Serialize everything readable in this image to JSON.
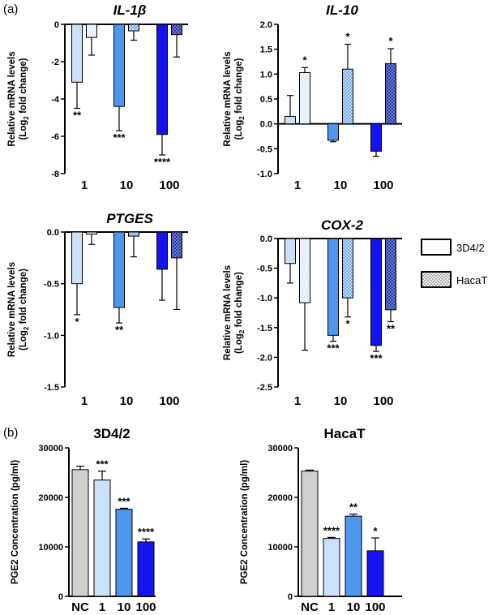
{
  "panel_labels": {
    "a": "(a)",
    "b": "(b)"
  },
  "legend": [
    {
      "name": "3D4/2",
      "pattern": "open"
    },
    {
      "name": "HacaT",
      "pattern": "hatched"
    }
  ],
  "colors": {
    "light": "#cce0f8",
    "mid": "#4d98ee",
    "dark": "#1414f0",
    "hatch_light": "#cfe2f8",
    "hatch_mid": "#6aa6ee",
    "hatch_dark": "#1a2aa0",
    "grey": "#d0d0d0"
  },
  "chart_data": [
    {
      "id": "il1b",
      "type": "bar",
      "title": "IL-1",
      "title_suffix": "β",
      "ylabel": "Relative mRNA levels",
      "ylabel2_pre": "(Log",
      "ylabel2_sub": "2",
      "ylabel2_post": " fold change)",
      "ylim": [
        -8,
        0
      ],
      "yticks": [
        0,
        -2,
        -4,
        -6,
        -8
      ],
      "ytick_labels": [
        "0",
        "-2",
        "-4",
        "-6",
        "-8"
      ],
      "categories": [
        "1",
        "10",
        "100"
      ],
      "series": [
        {
          "name": "3D4/2",
          "values": [
            -3.1,
            -4.4,
            -5.9
          ],
          "errors": [
            1.4,
            1.3,
            1.1
          ],
          "stars": [
            "**",
            "***",
            "****"
          ]
        },
        {
          "name": "HacaT",
          "values": [
            -0.7,
            -0.35,
            -0.55
          ],
          "errors": [
            0.95,
            0.5,
            1.2
          ],
          "stars": [
            "",
            "",
            ""
          ]
        }
      ]
    },
    {
      "id": "il10",
      "type": "bar",
      "title": "IL-10",
      "title_suffix": "",
      "ylabel": "Relative mRNA levels",
      "ylabel2_pre": "(Log",
      "ylabel2_sub": "2",
      "ylabel2_post": " fold change)",
      "ylim": [
        -1,
        2
      ],
      "yticks": [
        2,
        1.5,
        1,
        0.5,
        0,
        -0.5,
        -1
      ],
      "ytick_labels": [
        "2.0",
        "1.5",
        "1.0",
        "0.5",
        "0.0",
        "-0.5",
        "-1.0"
      ],
      "categories": [
        "1",
        "10",
        "100"
      ],
      "series": [
        {
          "name": "3D4/2",
          "values": [
            0.15,
            -0.33,
            -0.55
          ],
          "errors": [
            0.42,
            0.03,
            0.1
          ],
          "stars": [
            "",
            "",
            ""
          ]
        },
        {
          "name": "HacaT",
          "values": [
            1.03,
            1.1,
            1.21
          ],
          "errors": [
            0.1,
            0.5,
            0.3
          ],
          "stars": [
            "*",
            "*",
            "*"
          ]
        }
      ]
    },
    {
      "id": "ptges",
      "type": "bar",
      "title": "PTGES",
      "title_suffix": "",
      "ylabel": "Relative mRNA levels",
      "ylabel2_pre": "(Log",
      "ylabel2_sub": "2",
      "ylabel2_post": " fold change)",
      "ylim": [
        -1.5,
        0
      ],
      "yticks": [
        0,
        -0.5,
        -1,
        -1.5
      ],
      "ytick_labels": [
        "0.0",
        "-0.5",
        "-1.0",
        "-1.5"
      ],
      "categories": [
        "1",
        "10",
        "100"
      ],
      "series": [
        {
          "name": "3D4/2",
          "values": [
            -0.5,
            -0.73,
            -0.36
          ],
          "errors": [
            0.3,
            0.15,
            0.3
          ],
          "stars": [
            "*",
            "**",
            ""
          ]
        },
        {
          "name": "HacaT",
          "values": [
            -0.02,
            -0.04,
            -0.25
          ],
          "errors": [
            0.1,
            0.2,
            0.5
          ],
          "stars": [
            "",
            "",
            ""
          ]
        }
      ]
    },
    {
      "id": "cox2",
      "type": "bar",
      "title": "COX-2",
      "title_suffix": "",
      "ylabel": "Relative mRNA levels",
      "ylabel2_pre": "(Log",
      "ylabel2_sub": "2",
      "ylabel2_post": " fold change)",
      "ylim": [
        -2.5,
        0
      ],
      "yticks": [
        0,
        -0.5,
        -1,
        -1.5,
        -2,
        -2.5
      ],
      "ytick_labels": [
        "0.0",
        "-0.5",
        "-1.0",
        "-1.5",
        "-2.0",
        "-2.5"
      ],
      "categories": [
        "1",
        "10",
        "100"
      ],
      "series": [
        {
          "name": "3D4/2",
          "values": [
            -0.42,
            -1.63,
            -1.8
          ],
          "errors": [
            0.33,
            0.1,
            0.1
          ],
          "stars": [
            "",
            "***",
            "***"
          ]
        },
        {
          "name": "HacaT",
          "values": [
            -1.08,
            -1.0,
            -1.2
          ],
          "errors": [
            0.8,
            0.32,
            0.2
          ],
          "stars": [
            "",
            "*",
            "**"
          ]
        }
      ]
    },
    {
      "id": "pge2_3d42",
      "type": "bar",
      "title": "3D4/2",
      "ylabel": "PGE2 Concentration (pg/ml)",
      "ylim": [
        0,
        30000
      ],
      "yticks": [
        0,
        10000,
        20000,
        30000
      ],
      "ytick_labels": [
        "0",
        "10000",
        "20000",
        "30000"
      ],
      "categories": [
        "NC",
        "1",
        "10",
        "100"
      ],
      "values": [
        25600,
        23500,
        17600,
        11000
      ],
      "errors": [
        700,
        1800,
        200,
        600
      ],
      "stars": [
        "",
        "***",
        "***",
        "****"
      ]
    },
    {
      "id": "pge2_hacat",
      "type": "bar",
      "title": "HacaT",
      "ylabel": "PGE2 Concentration (pg/ml)",
      "ylim": [
        0,
        30000
      ],
      "yticks": [
        0,
        10000,
        20000,
        30000
      ],
      "ytick_labels": [
        "0",
        "10000",
        "20000",
        "30000"
      ],
      "categories": [
        "NC",
        "1",
        "10",
        "100"
      ],
      "values": [
        25300,
        11700,
        16200,
        9200
      ],
      "errors": [
        200,
        200,
        400,
        2600
      ],
      "stars": [
        "",
        "****",
        "**",
        "*"
      ]
    }
  ]
}
